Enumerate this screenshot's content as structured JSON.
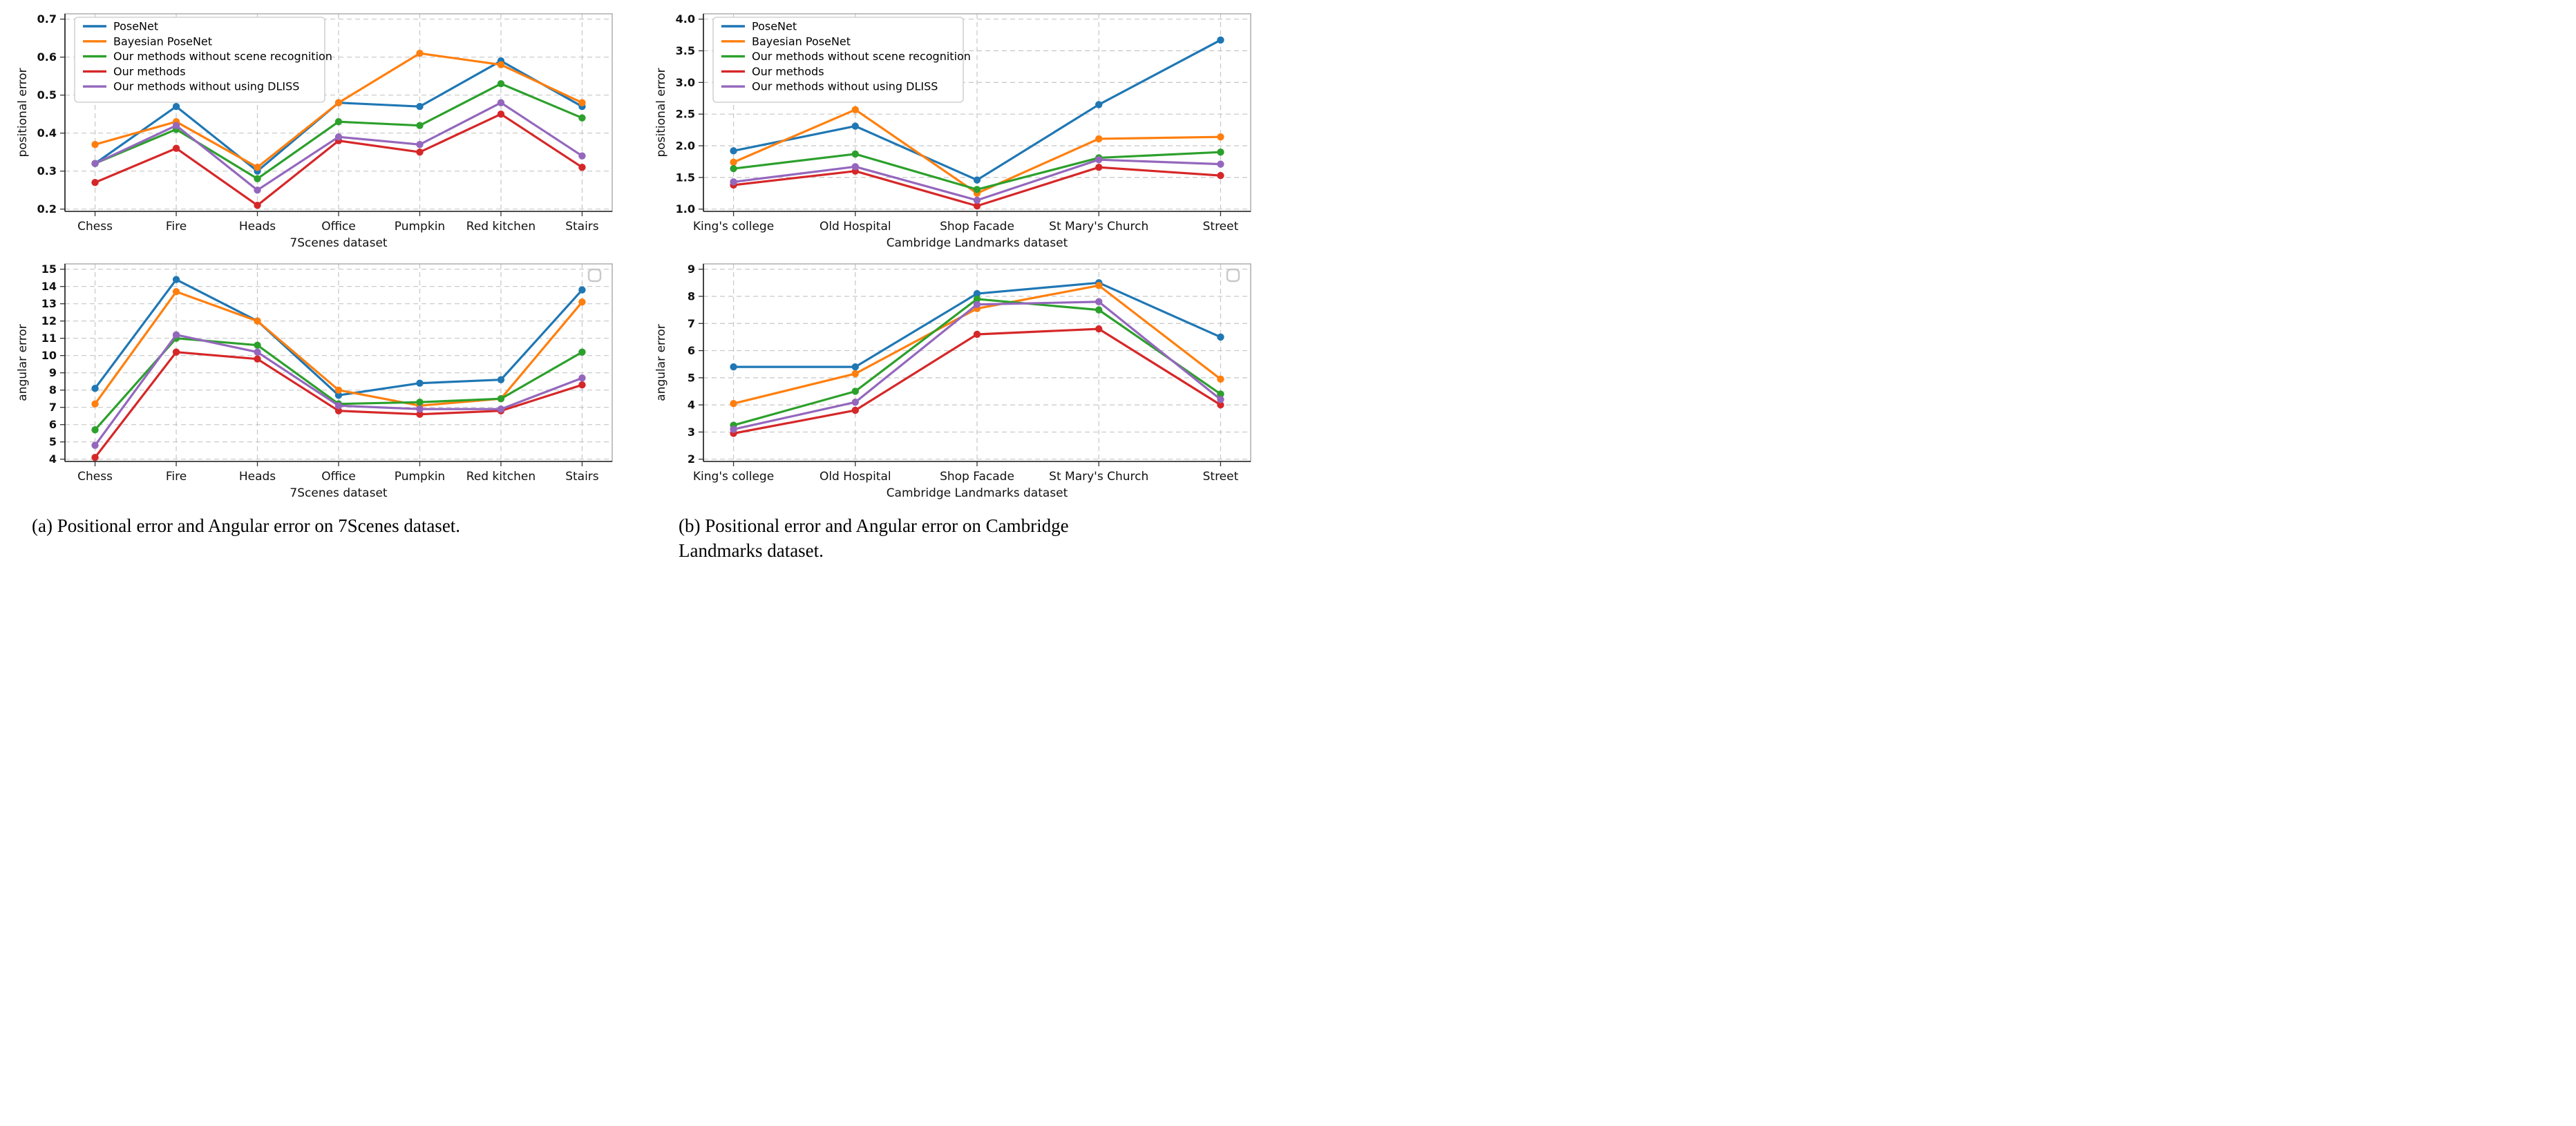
{
  "captions": {
    "a": "(a) Positional error and Angular error on 7Scenes dataset.",
    "b_line1": "(b) Positional error and Angular error on Cambridge",
    "b_line2": "Landmarks dataset."
  },
  "legend": {
    "entries": [
      {
        "label": "PoseNet",
        "color": "#1f77b4"
      },
      {
        "label": "Bayesian PoseNet",
        "color": "#ff7f0e"
      },
      {
        "label": "Our methods without scene recognition",
        "color": "#2ca02c"
      },
      {
        "label": "Our methods",
        "color": "#d62728"
      },
      {
        "label": "Our methods without using DLISS",
        "color": "#9467bd"
      }
    ]
  },
  "chart_data": [
    {
      "id": "positional-7scenes",
      "type": "line",
      "ylabel": "positional error",
      "xlabel": "7Scenes dataset",
      "ylim": [
        0.2,
        0.7
      ],
      "yticks": [
        0.2,
        0.3,
        0.4,
        0.5,
        0.6,
        0.7
      ],
      "ytick_labels": [
        "0.2",
        "0.3",
        "0.4",
        "0.5",
        "0.6",
        "0.7"
      ],
      "categories": [
        "Chess",
        "Fire",
        "Heads",
        "Office",
        "Pumpkin",
        "Red kitchen",
        "Stairs"
      ],
      "grid": true,
      "legend": "full",
      "legend_position": "upper-left",
      "series": [
        {
          "name": "PoseNet",
          "color": "#1f77b4",
          "values": [
            0.32,
            0.47,
            0.3,
            0.48,
            0.47,
            0.59,
            0.47
          ]
        },
        {
          "name": "Bayesian PoseNet",
          "color": "#ff7f0e",
          "values": [
            0.37,
            0.43,
            0.31,
            0.48,
            0.61,
            0.58,
            0.48
          ]
        },
        {
          "name": "Our methods without scene recognition",
          "color": "#2ca02c",
          "values": [
            0.32,
            0.41,
            0.28,
            0.43,
            0.42,
            0.53,
            0.44
          ]
        },
        {
          "name": "Our methods",
          "color": "#d62728",
          "values": [
            0.27,
            0.36,
            0.21,
            0.38,
            0.35,
            0.45,
            0.31
          ]
        },
        {
          "name": "Our methods without using DLISS",
          "color": "#9467bd",
          "values": [
            0.32,
            0.42,
            0.25,
            0.39,
            0.37,
            0.48,
            0.34
          ]
        }
      ]
    },
    {
      "id": "positional-cambridge",
      "type": "line",
      "ylabel": "positional error",
      "xlabel": "Cambridge Landmarks dataset",
      "ylim": [
        1.0,
        4.0
      ],
      "yticks": [
        1.0,
        1.5,
        2.0,
        2.5,
        3.0,
        3.5,
        4.0
      ],
      "ytick_labels": [
        "1.0",
        "1.5",
        "2.0",
        "2.5",
        "3.0",
        "3.5",
        "4.0"
      ],
      "categories": [
        "King's college",
        "Old Hospital",
        "Shop Facade",
        "St Mary's Church",
        "Street"
      ],
      "grid": true,
      "legend": "full",
      "legend_position": "upper-left",
      "series": [
        {
          "name": "PoseNet",
          "color": "#1f77b4",
          "values": [
            1.92,
            2.31,
            1.46,
            2.65,
            3.67
          ]
        },
        {
          "name": "Bayesian PoseNet",
          "color": "#ff7f0e",
          "values": [
            1.74,
            2.57,
            1.25,
            2.11,
            2.14
          ]
        },
        {
          "name": "Our methods without scene recognition",
          "color": "#2ca02c",
          "values": [
            1.64,
            1.87,
            1.31,
            1.81,
            1.9
          ]
        },
        {
          "name": "Our methods",
          "color": "#d62728",
          "values": [
            1.38,
            1.6,
            1.05,
            1.66,
            1.53
          ]
        },
        {
          "name": "Our methods without using DLISS",
          "color": "#9467bd",
          "values": [
            1.43,
            1.67,
            1.14,
            1.78,
            1.71
          ]
        }
      ]
    },
    {
      "id": "angular-7scenes",
      "type": "line",
      "ylabel": "angular error",
      "xlabel": "7Scenes dataset",
      "ylim": [
        4,
        15
      ],
      "yticks": [
        4,
        5,
        6,
        7,
        8,
        9,
        10,
        11,
        12,
        13,
        14,
        15
      ],
      "ytick_labels": [
        "4",
        "5",
        "6",
        "7",
        "8",
        "9",
        "10",
        "11",
        "12",
        "13",
        "14",
        "15"
      ],
      "categories": [
        "Chess",
        "Fire",
        "Heads",
        "Office",
        "Pumpkin",
        "Red kitchen",
        "Stairs"
      ],
      "grid": true,
      "legend": "empty-box",
      "legend_position": "upper-right",
      "series": [
        {
          "name": "PoseNet",
          "color": "#1f77b4",
          "values": [
            8.1,
            14.4,
            12.0,
            7.7,
            8.4,
            8.6,
            13.8
          ]
        },
        {
          "name": "Bayesian PoseNet",
          "color": "#ff7f0e",
          "values": [
            7.2,
            13.7,
            12.0,
            8.0,
            7.1,
            7.5,
            13.1
          ]
        },
        {
          "name": "Our methods without scene recognition",
          "color": "#2ca02c",
          "values": [
            5.7,
            11.0,
            10.6,
            7.2,
            7.3,
            7.5,
            10.2
          ]
        },
        {
          "name": "Our methods",
          "color": "#d62728",
          "values": [
            4.1,
            10.2,
            9.8,
            6.8,
            6.6,
            6.8,
            8.3
          ]
        },
        {
          "name": "Our methods without using DLISS",
          "color": "#9467bd",
          "values": [
            4.8,
            11.2,
            10.2,
            7.1,
            6.9,
            6.9,
            8.7
          ]
        }
      ]
    },
    {
      "id": "angular-cambridge",
      "type": "line",
      "ylabel": "angular error",
      "xlabel": "Cambridge Landmarks dataset",
      "ylim": [
        2,
        9
      ],
      "yticks": [
        2,
        3,
        4,
        5,
        6,
        7,
        8,
        9
      ],
      "ytick_labels": [
        "2",
        "3",
        "4",
        "5",
        "6",
        "7",
        "8",
        "9"
      ],
      "categories": [
        "King's college",
        "Old Hospital",
        "Shop Facade",
        "St Mary's Church",
        "Street"
      ],
      "grid": true,
      "legend": "empty-box",
      "legend_position": "upper-right",
      "series": [
        {
          "name": "PoseNet",
          "color": "#1f77b4",
          "values": [
            5.4,
            5.4,
            8.1,
            8.5,
            6.5
          ]
        },
        {
          "name": "Bayesian PoseNet",
          "color": "#ff7f0e",
          "values": [
            4.05,
            5.15,
            7.55,
            8.4,
            4.95
          ]
        },
        {
          "name": "Our methods without scene recognition",
          "color": "#2ca02c",
          "values": [
            3.25,
            4.5,
            7.9,
            7.5,
            4.4
          ]
        },
        {
          "name": "Our methods",
          "color": "#d62728",
          "values": [
            2.95,
            3.8,
            6.6,
            6.8,
            4.0
          ]
        },
        {
          "name": "Our methods without using DLISS",
          "color": "#9467bd",
          "values": [
            3.1,
            4.1,
            7.7,
            7.8,
            4.2
          ]
        }
      ]
    }
  ]
}
